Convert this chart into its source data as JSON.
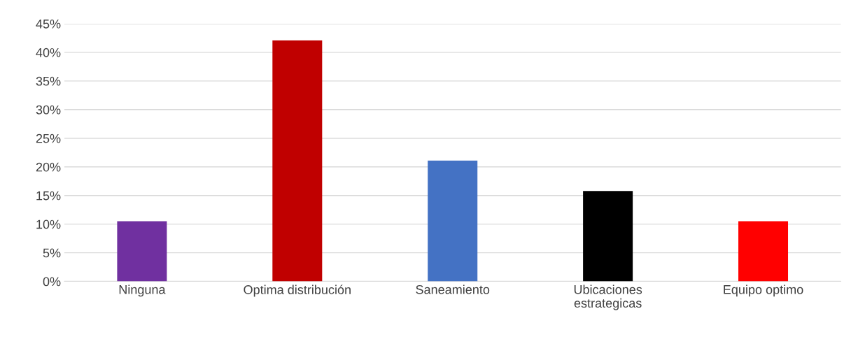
{
  "chart_data": {
    "type": "bar",
    "categories": [
      "Ninguna",
      "Optima distribución",
      "Saneamiento",
      "Ubicaciones\nestrategicas",
      "Equipo optimo"
    ],
    "values": [
      10.5,
      42.1,
      21.1,
      15.8,
      10.5
    ],
    "colors": [
      "#7030a0",
      "#c00000",
      "#4472c4",
      "#000000",
      "#ff0000"
    ],
    "ylim": [
      0,
      45
    ],
    "yticks": [
      {
        "value": 0,
        "label": "0%"
      },
      {
        "value": 5,
        "label": "5%"
      },
      {
        "value": 10,
        "label": "10%"
      },
      {
        "value": 15,
        "label": "15%"
      },
      {
        "value": 20,
        "label": "20%"
      },
      {
        "value": 25,
        "label": "25%"
      },
      {
        "value": 30,
        "label": "30%"
      },
      {
        "value": 35,
        "label": "35%"
      },
      {
        "value": 40,
        "label": "40%"
      },
      {
        "value": 45,
        "label": "45%"
      }
    ],
    "grid": "y",
    "legend": false
  }
}
